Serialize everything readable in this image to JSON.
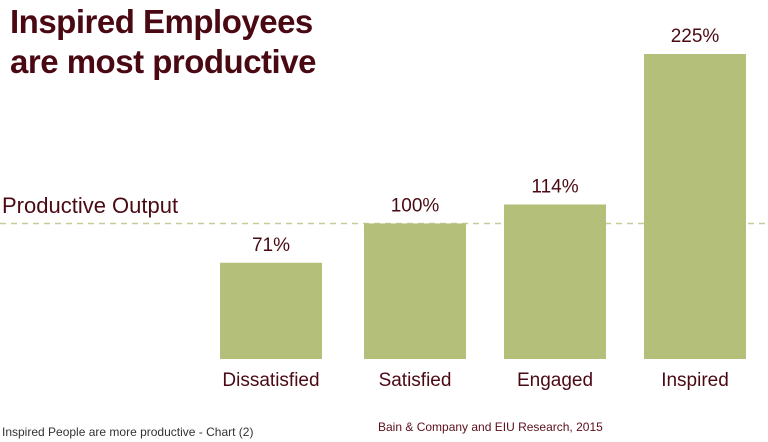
{
  "chart_data": {
    "type": "bar",
    "title": "Inspired Employees are most productive",
    "title_lines": [
      "Inspired Employees",
      "are most productive"
    ],
    "categories": [
      "Dissatisfied",
      "Satisfied",
      "Engaged",
      "Inspired"
    ],
    "values": [
      71,
      100,
      114,
      225
    ],
    "value_labels": [
      "71%",
      "100%",
      "114%",
      "225%"
    ],
    "reference_line": {
      "label": "Productive Output",
      "value": 100
    },
    "ylim": [
      0,
      225
    ],
    "xlabel": "",
    "ylabel": "",
    "grid": false,
    "colors": {
      "bar": "#b4c07a",
      "text": "#4a0a14",
      "reference": "#c5cc9a"
    }
  },
  "footer": {
    "caption": "Inspired People are more productive - Chart (2)",
    "source": "Bain & Company and EIU Research, 2015"
  }
}
